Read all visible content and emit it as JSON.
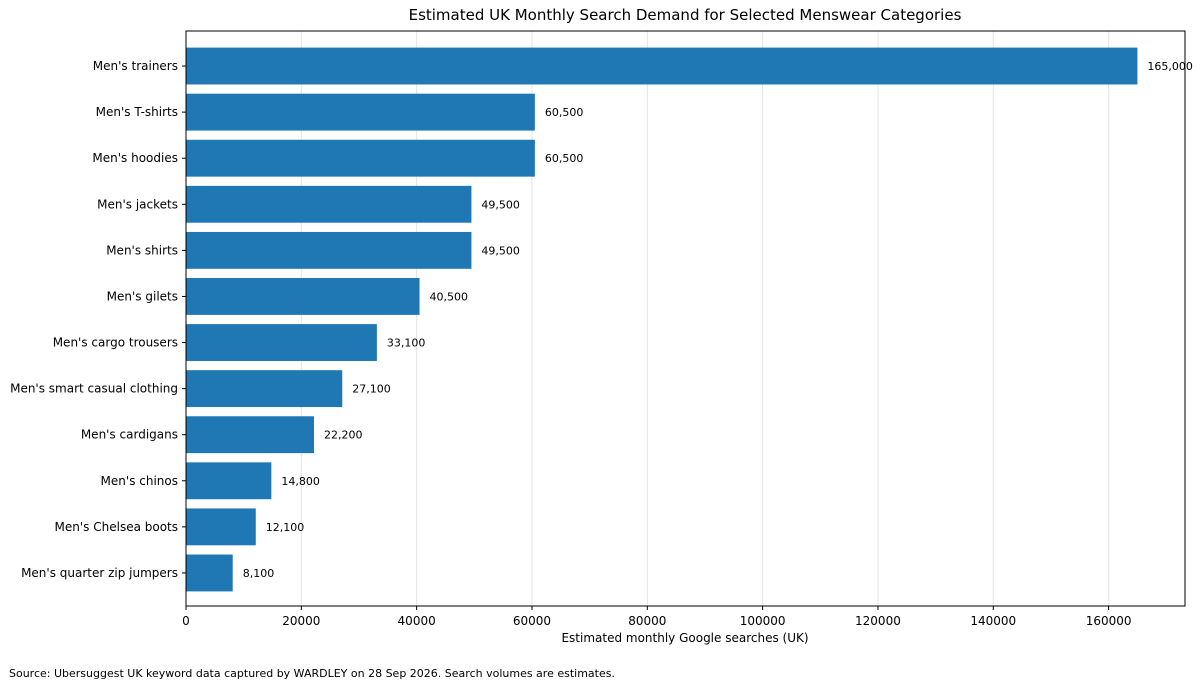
{
  "chart_data": {
    "type": "bar",
    "orientation": "horizontal",
    "title": "Estimated UK Monthly Search Demand for Selected Menswear Categories",
    "xlabel": "Estimated monthly Google searches (UK)",
    "ylabel": "",
    "xlim": [
      0,
      173250
    ],
    "xticks": [
      0,
      20000,
      40000,
      60000,
      80000,
      100000,
      120000,
      140000,
      160000
    ],
    "grid": "x",
    "bar_color": "#1f77b4",
    "categories": [
      "Men's trainers",
      "Men's T-shirts",
      "Men's hoodies",
      "Men's jackets",
      "Men's shirts",
      "Men's gilets",
      "Men's cargo trousers",
      "Men's smart casual clothing",
      "Men's cardigans",
      "Men's chinos",
      "Men's Chelsea boots",
      "Men's quarter zip jumpers"
    ],
    "values": [
      165000,
      60500,
      60500,
      49500,
      49500,
      40500,
      33100,
      27100,
      22200,
      14800,
      12100,
      8100
    ],
    "data_labels": [
      "165,000",
      "60,500",
      "60,500",
      "49,500",
      "49,500",
      "40,500",
      "33,100",
      "27,100",
      "22,200",
      "14,800",
      "12,100",
      "8,100"
    ]
  },
  "footer": {
    "source": "Source: Ubersuggest UK keyword data captured by WARDLEY on 28 Sep 2026. Search volumes are estimates."
  }
}
